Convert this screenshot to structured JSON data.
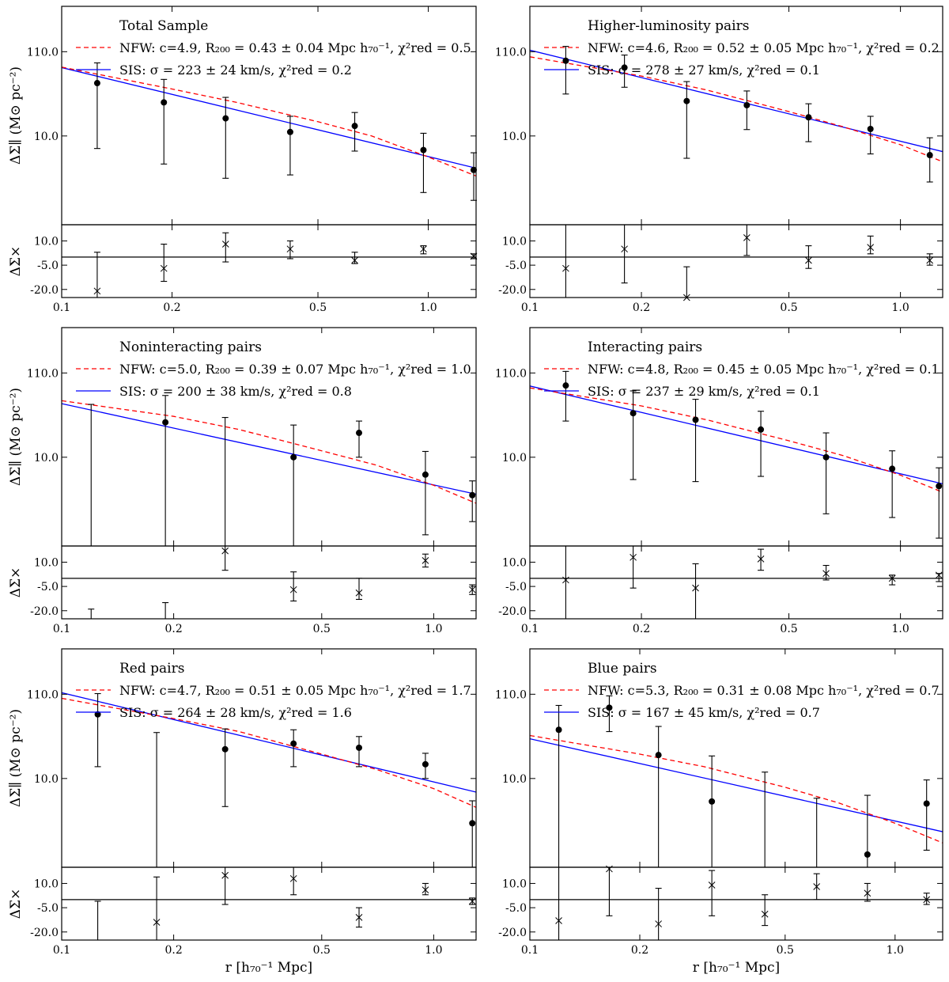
{
  "figure": {
    "x_label": "r [h₇₀⁻¹ Mpc]",
    "y_label_main": "ΔΣ∥ (M⊙ pc⁻²)",
    "y_label_cross": "ΔΣ×"
  },
  "chart_data": [
    {
      "type": "scatter",
      "title": "Total Sample",
      "nfw_label": "NFW: c=4.9, R₂₀₀ = 0.43 ± 0.04 Mpc h₇₀⁻¹, χ²red = 0.5",
      "sis_label": "SIS: σ = 223 ± 24 km/s, χ²red = 0.2",
      "xscale": "log",
      "xlim": [
        0.1,
        1.35
      ],
      "x_ticks": [
        0.1,
        0.2,
        0.5,
        1.0
      ],
      "x_tick_labels": [
        "0.1",
        "0.2",
        "0.5",
        "1.0"
      ],
      "ylim_main": [
        0.8,
        400
      ],
      "yscale_main": "log",
      "y_ticks_main": [
        110,
        10
      ],
      "y_tick_labels_main": [
        "110.0",
        "10.0"
      ],
      "ylim_cross": [
        -25,
        20
      ],
      "y_ticks_cross": [
        10,
        -5,
        -20
      ],
      "y_tick_labels_cross": [
        "10.0",
        "-5.0",
        "-20.0"
      ],
      "cross_zero": 0,
      "main_points": [
        {
          "x": 0.125,
          "y": 45,
          "lo": 7.0,
          "hi": 80
        },
        {
          "x": 0.19,
          "y": 26,
          "lo": 4.5,
          "hi": 50
        },
        {
          "x": 0.28,
          "y": 16.5,
          "lo": 3.0,
          "hi": 30
        },
        {
          "x": 0.42,
          "y": 11.2,
          "lo": 3.3,
          "hi": 17.5
        },
        {
          "x": 0.63,
          "y": 13.3,
          "lo": 6.5,
          "hi": 19.5
        },
        {
          "x": 0.97,
          "y": 6.7,
          "lo": 2.0,
          "hi": 10.8
        },
        {
          "x": 1.33,
          "y": 3.8,
          "lo": 1.6,
          "hi": 6.2
        }
      ],
      "cross_points": [
        {
          "x": 0.125,
          "y": -21,
          "lo": -25,
          "hi": 3
        },
        {
          "x": 0.19,
          "y": -7,
          "lo": -15,
          "hi": 8
        },
        {
          "x": 0.28,
          "y": 8,
          "lo": -3,
          "hi": 15
        },
        {
          "x": 0.42,
          "y": 5,
          "lo": -1,
          "hi": 10
        },
        {
          "x": 0.63,
          "y": -2,
          "lo": -4,
          "hi": 3
        },
        {
          "x": 0.97,
          "y": 5,
          "lo": 2,
          "hi": 7
        },
        {
          "x": 1.33,
          "y": 0.5,
          "lo": -1,
          "hi": 2
        }
      ],
      "nfw": {
        "x": [
          0.1,
          0.2,
          0.3,
          0.5,
          0.7,
          1.0,
          1.35
        ],
        "y": [
          71,
          38,
          26,
          15,
          10,
          5.5,
          3.2
        ]
      },
      "sis": {
        "x": [
          0.1,
          1.35
        ],
        "y": [
          70,
          4.0
        ]
      }
    },
    {
      "type": "scatter",
      "title": "Higher-luminosity pairs",
      "nfw_label": "NFW: c=4.6, R₂₀₀ = 0.52 ± 0.05 Mpc h₇₀⁻¹, χ²red = 0.2",
      "sis_label": "SIS: σ = 278 ± 27 km/s, χ²red = 0.1",
      "xscale": "log",
      "xlim": [
        0.1,
        1.3
      ],
      "x_ticks": [
        0.1,
        0.2,
        0.5,
        1.0
      ],
      "x_tick_labels": [
        "0.1",
        "0.2",
        "0.5",
        "1.0"
      ],
      "ylim_main": [
        0.8,
        400
      ],
      "yscale_main": "log",
      "y_ticks_main": [
        110,
        10
      ],
      "y_tick_labels_main": [
        "110.0",
        "10.0"
      ],
      "ylim_cross": [
        -25,
        20
      ],
      "y_ticks_cross": [
        10,
        -5,
        -20
      ],
      "y_tick_labels_cross": [
        "10.0",
        "-5.0",
        "-20.0"
      ],
      "cross_zero": 0,
      "main_points": [
        {
          "x": 0.125,
          "y": 85,
          "lo": 33,
          "hi": 128
        },
        {
          "x": 0.18,
          "y": 70,
          "lo": 40,
          "hi": 100
        },
        {
          "x": 0.265,
          "y": 27,
          "lo": 5.3,
          "hi": 47
        },
        {
          "x": 0.385,
          "y": 24,
          "lo": 12,
          "hi": 36
        },
        {
          "x": 0.565,
          "y": 17,
          "lo": 8.5,
          "hi": 25
        },
        {
          "x": 0.83,
          "y": 12.2,
          "lo": 6.0,
          "hi": 17.5
        },
        {
          "x": 1.2,
          "y": 5.8,
          "lo": 2.7,
          "hi": 9.5
        }
      ],
      "cross_points": [
        {
          "x": 0.125,
          "y": -7,
          "lo": -25,
          "hi": 20
        },
        {
          "x": 0.18,
          "y": 5,
          "lo": -16,
          "hi": 20
        },
        {
          "x": 0.265,
          "y": -25,
          "lo": -25,
          "hi": -6
        },
        {
          "x": 0.385,
          "y": 12,
          "lo": 1,
          "hi": 23
        },
        {
          "x": 0.565,
          "y": -2,
          "lo": -7,
          "hi": 7
        },
        {
          "x": 0.83,
          "y": 6,
          "lo": 2,
          "hi": 13
        },
        {
          "x": 1.2,
          "y": -2,
          "lo": -5,
          "hi": 2
        }
      ],
      "nfw": {
        "x": [
          0.1,
          0.2,
          0.3,
          0.5,
          0.7,
          1.0,
          1.3
        ],
        "y": [
          95,
          55,
          37,
          20,
          13,
          7.8,
          4.8
        ]
      },
      "sis": {
        "x": [
          0.1,
          1.3
        ],
        "y": [
          115,
          6.4
        ]
      }
    },
    {
      "type": "scatter",
      "title": "Noninteracting pairs",
      "nfw_label": "NFW: c=5.0, R₂₀₀ = 0.39 ± 0.07 Mpc h₇₀⁻¹, χ²red = 1.0",
      "sis_label": "SIS: σ = 200 ± 38 km/s, χ²red = 0.8",
      "xscale": "log",
      "xlim": [
        0.1,
        1.3
      ],
      "x_ticks": [
        0.1,
        0.2,
        0.5,
        1.0
      ],
      "x_tick_labels": [
        "0.1",
        "0.2",
        "0.5",
        "1.0"
      ],
      "ylim_main": [
        0.8,
        400
      ],
      "yscale_main": "log",
      "y_ticks_main": [
        110,
        10
      ],
      "y_tick_labels_main": [
        "110.0",
        "10.0"
      ],
      "ylim_cross": [
        -25,
        20
      ],
      "y_ticks_cross": [
        10,
        -5,
        -20
      ],
      "y_tick_labels_cross": [
        "10.0",
        "-5.0",
        "-20.0"
      ],
      "cross_zero": 0,
      "main_points": [
        {
          "x": 0.12,
          "y": null,
          "lo": 0.8,
          "hi": 45
        },
        {
          "x": 0.19,
          "y": 27,
          "lo": 0.8,
          "hi": 58
        },
        {
          "x": 0.275,
          "y": null,
          "lo": 0.8,
          "hi": 31
        },
        {
          "x": 0.42,
          "y": 10,
          "lo": 0.8,
          "hi": 25
        },
        {
          "x": 0.63,
          "y": 20,
          "lo": 10,
          "hi": 28
        },
        {
          "x": 0.95,
          "y": 6.1,
          "lo": 1.1,
          "hi": 11.8
        },
        {
          "x": 1.27,
          "y": 3.4,
          "lo": 1.6,
          "hi": 5.1
        }
      ],
      "cross_points": [
        {
          "x": 0.12,
          "y": null,
          "lo": -25,
          "hi": -19
        },
        {
          "x": 0.19,
          "y": null,
          "lo": -25,
          "hi": -15
        },
        {
          "x": 0.275,
          "y": 17,
          "lo": 5,
          "hi": 20
        },
        {
          "x": 0.42,
          "y": -7,
          "lo": -14,
          "hi": 4
        },
        {
          "x": 0.63,
          "y": -9,
          "lo": -13,
          "hi": 0
        },
        {
          "x": 0.95,
          "y": 11,
          "lo": 7,
          "hi": 15
        },
        {
          "x": 1.27,
          "y": -7,
          "lo": -10,
          "hi": -4
        }
      ],
      "nfw": {
        "x": [
          0.1,
          0.2,
          0.3,
          0.5,
          0.7,
          1.0,
          1.3
        ],
        "y": [
          50,
          32,
          22,
          12,
          8,
          4.5,
          2.7
        ]
      },
      "sis": {
        "x": [
          0.1,
          1.3
        ],
        "y": [
          46,
          3.5
        ]
      }
    },
    {
      "type": "scatter",
      "title": "Interacting pairs",
      "nfw_label": "NFW: c=4.8, R₂₀₀ = 0.45 ± 0.05 Mpc h₇₀⁻¹, χ²red = 0.1",
      "sis_label": "SIS: σ = 237 ± 29 km/s, χ²red = 0.1",
      "xscale": "log",
      "xlim": [
        0.1,
        1.3
      ],
      "x_ticks": [
        0.1,
        0.2,
        0.5,
        1.0
      ],
      "x_tick_labels": [
        "0.1",
        "0.2",
        "0.5",
        "1.0"
      ],
      "ylim_main": [
        0.8,
        400
      ],
      "yscale_main": "log",
      "y_ticks_main": [
        110,
        10
      ],
      "y_tick_labels_main": [
        "110.0",
        "10.0"
      ],
      "ylim_cross": [
        -25,
        20
      ],
      "y_ticks_cross": [
        10,
        -5,
        -20
      ],
      "y_tick_labels_cross": [
        "10.0",
        "-5.0",
        "-20.0"
      ],
      "cross_zero": 0,
      "main_points": [
        {
          "x": 0.125,
          "y": 77,
          "lo": 28,
          "hi": 115
        },
        {
          "x": 0.19,
          "y": 35,
          "lo": 5.3,
          "hi": 66
        },
        {
          "x": 0.28,
          "y": 29,
          "lo": 5.0,
          "hi": 52
        },
        {
          "x": 0.42,
          "y": 22,
          "lo": 5.8,
          "hi": 37
        },
        {
          "x": 0.63,
          "y": 10,
          "lo": 2.0,
          "hi": 20
        },
        {
          "x": 0.95,
          "y": 7.2,
          "lo": 1.8,
          "hi": 12
        },
        {
          "x": 1.27,
          "y": 4.4,
          "lo": 1.0,
          "hi": 7.4
        }
      ],
      "cross_points": [
        {
          "x": 0.125,
          "y": -1,
          "lo": -25,
          "hi": 20
        },
        {
          "x": 0.19,
          "y": 13,
          "lo": -6,
          "hi": 20
        },
        {
          "x": 0.28,
          "y": -6,
          "lo": -25,
          "hi": 9
        },
        {
          "x": 0.42,
          "y": 12,
          "lo": 5,
          "hi": 18
        },
        {
          "x": 0.63,
          "y": 3,
          "lo": -1,
          "hi": 8
        },
        {
          "x": 0.95,
          "y": 0,
          "lo": -4,
          "hi": 2
        },
        {
          "x": 1.27,
          "y": 2,
          "lo": -2,
          "hi": 3
        }
      ],
      "nfw": {
        "x": [
          0.1,
          0.2,
          0.3,
          0.5,
          0.7,
          1.0,
          1.3
        ],
        "y": [
          72,
          43,
          29,
          16,
          10.5,
          6.0,
          3.7
        ]
      },
      "sis": {
        "x": [
          0.1,
          1.3
        ],
        "y": [
          76,
          4.7
        ]
      }
    },
    {
      "type": "scatter",
      "title": "Red pairs",
      "nfw_label": "NFW: c=4.7, R₂₀₀ = 0.51 ± 0.05 Mpc h₇₀⁻¹, χ²red = 1.7",
      "sis_label": "SIS: σ = 264 ± 28 km/s, χ²red = 1.6",
      "xscale": "log",
      "xlim": [
        0.1,
        1.3
      ],
      "x_ticks": [
        0.1,
        0.2,
        0.5,
        1.0
      ],
      "x_tick_labels": [
        "0.1",
        "0.2",
        "0.5",
        "1.0"
      ],
      "ylim_main": [
        0.8,
        400
      ],
      "yscale_main": "log",
      "y_ticks_main": [
        110,
        10
      ],
      "y_tick_labels_main": [
        "110.0",
        "10.0"
      ],
      "ylim_cross": [
        -25,
        20
      ],
      "y_ticks_cross": [
        10,
        -5,
        -20
      ],
      "y_tick_labels_cross": [
        "10.0",
        "-5.0",
        "-20.0"
      ],
      "cross_zero": 0,
      "main_points": [
        {
          "x": 0.125,
          "y": 62,
          "lo": 14,
          "hi": 112
        },
        {
          "x": 0.18,
          "y": null,
          "lo": 0.8,
          "hi": 37
        },
        {
          "x": 0.275,
          "y": 23,
          "lo": 4.5,
          "hi": 41
        },
        {
          "x": 0.42,
          "y": 27,
          "lo": 14,
          "hi": 40
        },
        {
          "x": 0.63,
          "y": 24,
          "lo": 14,
          "hi": 33
        },
        {
          "x": 0.95,
          "y": 15,
          "lo": 10,
          "hi": 20.5
        },
        {
          "x": 1.27,
          "y": 2.8,
          "lo": 0.8,
          "hi": 5.3
        }
      ],
      "cross_points": [
        {
          "x": 0.125,
          "y": null,
          "lo": -25,
          "hi": -1
        },
        {
          "x": 0.18,
          "y": -14,
          "lo": -25,
          "hi": 14
        },
        {
          "x": 0.275,
          "y": 15,
          "lo": -3,
          "hi": 20
        },
        {
          "x": 0.42,
          "y": 13,
          "lo": 3,
          "hi": 20
        },
        {
          "x": 0.63,
          "y": -11,
          "lo": -17,
          "hi": -5
        },
        {
          "x": 0.95,
          "y": 6,
          "lo": 3,
          "hi": 10
        },
        {
          "x": 1.27,
          "y": -1,
          "lo": -3,
          "hi": 1
        }
      ],
      "nfw": {
        "x": [
          0.1,
          0.2,
          0.3,
          0.5,
          0.7,
          1.0,
          1.3
        ],
        "y": [
          98,
          55,
          38,
          20,
          13,
          7.5,
          4.4
        ]
      },
      "sis": {
        "x": [
          0.1,
          1.3
        ],
        "y": [
          115,
          6.8
        ]
      }
    },
    {
      "type": "scatter",
      "title": "Blue pairs",
      "nfw_label": "NFW: c=5.3, R₂₀₀ = 0.31 ± 0.08 Mpc h₇₀⁻¹, χ²red = 0.7",
      "sis_label": "SIS: σ = 167 ± 45 km/s, χ²red = 0.7",
      "xscale": "log",
      "xlim": [
        0.1,
        1.35
      ],
      "x_ticks": [
        0.1,
        0.2,
        0.5,
        1.0
      ],
      "x_tick_labels": [
        "0.1",
        "0.2",
        "0.5",
        "1.0"
      ],
      "ylim_main": [
        0.8,
        400
      ],
      "yscale_main": "log",
      "y_ticks_main": [
        110,
        10
      ],
      "y_tick_labels_main": [
        "110.0",
        "10.0"
      ],
      "ylim_cross": [
        -25,
        20
      ],
      "y_ticks_cross": [
        10,
        -5,
        -20
      ],
      "y_tick_labels_cross": [
        "10.0",
        "-5.0",
        "-20.0"
      ],
      "cross_zero": 0,
      "main_points": [
        {
          "x": 0.12,
          "y": 40,
          "lo": 0.8,
          "hi": 80
        },
        {
          "x": 0.165,
          "y": 75,
          "lo": 38,
          "hi": 105
        },
        {
          "x": 0.225,
          "y": 19.5,
          "lo": 0.8,
          "hi": 44
        },
        {
          "x": 0.315,
          "y": 5.2,
          "lo": 0.8,
          "hi": 19
        },
        {
          "x": 0.44,
          "y": null,
          "lo": 0.8,
          "hi": 12
        },
        {
          "x": 0.61,
          "y": null,
          "lo": 0.8,
          "hi": 5.7
        },
        {
          "x": 0.84,
          "y": 1.15,
          "lo": 0.8,
          "hi": 6.2
        },
        {
          "x": 1.22,
          "y": 4.9,
          "lo": 1.3,
          "hi": 9.6
        }
      ],
      "cross_points": [
        {
          "x": 0.12,
          "y": -13,
          "lo": -25,
          "hi": 20
        },
        {
          "x": 0.165,
          "y": 19,
          "lo": -10,
          "hi": 20
        },
        {
          "x": 0.225,
          "y": -15,
          "lo": -25,
          "hi": 7
        },
        {
          "x": 0.315,
          "y": 9,
          "lo": -10,
          "hi": 18
        },
        {
          "x": 0.44,
          "y": -9,
          "lo": -16,
          "hi": 3
        },
        {
          "x": 0.61,
          "y": 8,
          "lo": 0,
          "hi": 16
        },
        {
          "x": 0.84,
          "y": 4,
          "lo": -1,
          "hi": 10
        },
        {
          "x": 1.22,
          "y": 0,
          "lo": -3,
          "hi": 4
        }
      ],
      "nfw": {
        "x": [
          0.1,
          0.2,
          0.3,
          0.5,
          0.7,
          1.0,
          1.35
        ],
        "y": [
          34,
          20,
          14,
          7.8,
          5.0,
          2.8,
          1.6
        ]
      },
      "sis": {
        "x": [
          0.1,
          1.35
        ],
        "y": [
          31,
          2.2
        ]
      }
    }
  ]
}
